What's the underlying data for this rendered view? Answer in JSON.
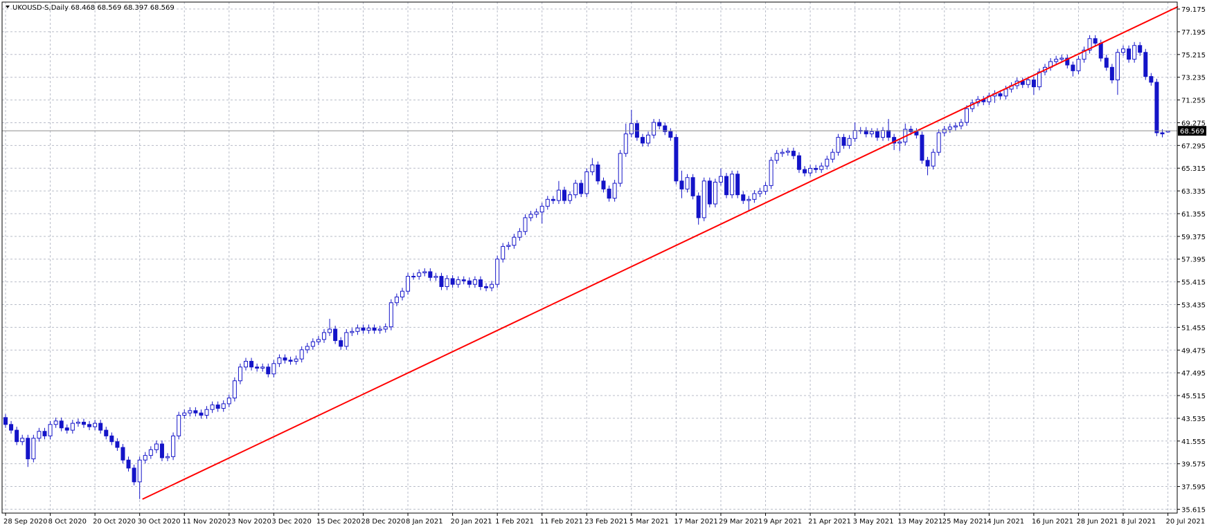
{
  "chart_data": {
    "type": "candlestick",
    "title": "UKOUSD-S,Daily",
    "x": [
      "28 Sep 2020",
      null,
      null,
      null,
      null,
      null,
      null,
      null,
      "8 Oct 2020",
      null,
      null,
      null,
      null,
      null,
      null,
      null,
      "20 Oct 2020",
      null,
      null,
      null,
      null,
      null,
      null,
      null,
      "30 Oct 2020",
      null,
      null,
      null,
      null,
      null,
      null,
      null,
      "11 Nov 2020",
      null,
      null,
      null,
      null,
      null,
      null,
      null,
      "23 Nov 2020",
      null,
      null,
      null,
      null,
      null,
      null,
      null,
      "3 Dec 2020",
      null,
      null,
      null,
      null,
      null,
      null,
      null,
      "15 Dec 2020",
      null,
      null,
      null,
      null,
      null,
      null,
      null,
      "28 Dec 2020",
      null,
      null,
      null,
      null,
      null,
      null,
      null,
      "8 Jan 2021",
      null,
      null,
      null,
      null,
      null,
      null,
      null,
      "20 Jan 2021",
      null,
      null,
      null,
      null,
      null,
      null,
      null,
      "1 Feb 2021",
      null,
      null,
      null,
      null,
      null,
      null,
      null,
      "11 Feb 2021",
      null,
      null,
      null,
      null,
      null,
      null,
      null,
      "23 Feb 2021",
      null,
      null,
      null,
      null,
      null,
      null,
      null,
      "5 Mar 2021",
      null,
      null,
      null,
      null,
      null,
      null,
      null,
      "17 Mar 2021",
      null,
      null,
      null,
      null,
      null,
      null,
      null,
      "29 Mar 2021",
      null,
      null,
      null,
      null,
      null,
      null,
      null,
      "9 Apr 2021",
      null,
      null,
      null,
      null,
      null,
      null,
      null,
      "21 Apr 2021",
      null,
      null,
      null,
      null,
      null,
      null,
      null,
      "3 May 2021",
      null,
      null,
      null,
      null,
      null,
      null,
      null,
      "13 May 2021",
      null,
      null,
      null,
      null,
      null,
      null,
      null,
      "25 May 2021",
      null,
      null,
      null,
      null,
      null,
      null,
      null,
      "4 Jun 2021",
      null,
      null,
      null,
      null,
      null,
      null,
      null,
      "16 Jun 2021",
      null,
      null,
      null,
      null,
      null,
      null,
      null,
      "28 Jun 2021",
      null,
      null,
      null,
      null,
      null,
      null,
      null,
      "8 Jul 2021",
      null,
      null,
      null,
      null,
      null,
      null,
      null,
      "20 Jul 2021"
    ],
    "open": [
      43.6,
      43.0,
      42.5,
      41.5,
      41.8,
      40.0,
      41.8,
      42.4,
      42.0,
      43.0,
      43.3,
      42.7,
      42.5,
      43.1,
      43.2,
      43.0,
      42.8,
      43.1,
      42.5,
      42.0,
      41.5,
      41.0,
      39.9,
      39.2,
      38.0,
      39.9,
      40.3,
      40.8,
      41.3,
      40.1,
      40.2,
      42.0,
      43.8,
      44.0,
      44.2,
      44.0,
      43.8,
      44.3,
      44.7,
      44.4,
      44.8,
      45.3,
      46.8,
      48.0,
      48.5,
      48.0,
      47.9,
      48.0,
      47.4,
      48.3,
      48.8,
      48.6,
      48.5,
      48.7,
      49.5,
      49.8,
      50.2,
      50.4,
      51.0,
      51.3,
      50.3,
      49.8,
      51.0,
      51.1,
      51.4,
      51.2,
      51.4,
      51.2,
      51.3,
      51.5,
      53.6,
      54.1,
      54.6,
      55.9,
      55.9,
      56.2,
      56.3,
      55.8,
      55.9,
      55.0,
      55.7,
      55.2,
      55.6,
      55.5,
      55.2,
      55.6,
      55.0,
      54.9,
      55.2,
      57.4,
      58.5,
      58.6,
      59.3,
      59.8,
      61.0,
      61.3,
      61.5,
      62.0,
      62.6,
      62.5,
      63.4,
      62.5,
      63.0,
      64.0,
      63.1,
      65.0,
      65.6,
      64.2,
      63.5,
      62.7,
      64.0,
      66.6,
      68.3,
      69.2,
      68.0,
      67.5,
      68.2,
      69.3,
      69.0,
      68.5,
      68.0,
      64.2,
      63.5,
      64.5,
      62.9,
      61.0,
      64.2,
      62.2,
      64.1,
      64.6,
      63.0,
      64.8,
      63.0,
      62.5,
      62.6,
      63.1,
      63.3,
      63.8,
      66.0,
      66.6,
      66.7,
      66.8,
      66.4,
      65.2,
      64.9,
      65.3,
      65.2,
      65.5,
      66.1,
      66.7,
      68.0,
      67.3,
      67.9,
      68.6,
      68.6,
      68.3,
      68.5,
      68.0,
      68.6,
      68.0,
      67.5,
      67.6,
      68.7,
      68.5,
      68.2,
      66.0,
      65.5,
      66.7,
      68.4,
      68.7,
      68.9,
      69.0,
      69.3,
      70.5,
      71.0,
      71.3,
      71.1,
      71.6,
      71.8,
      71.6,
      72.2,
      72.5,
      72.9,
      72.6,
      73.0,
      72.4,
      73.7,
      74.1,
      74.6,
      74.8,
      74.9,
      74.3,
      73.8,
      74.8,
      75.6,
      76.6,
      76.2,
      74.9,
      74.1,
      73.0,
      75.4,
      75.7,
      74.8,
      76.0,
      75.4,
      73.3,
      72.8,
      68.4,
      68.468
    ],
    "high": [
      43.9,
      43.3,
      42.8,
      42.1,
      42.1,
      42.1,
      42.7,
      42.7,
      43.3,
      43.6,
      43.6,
      43.0,
      43.4,
      43.5,
      43.5,
      43.3,
      43.4,
      43.4,
      42.8,
      42.3,
      41.8,
      41.3,
      40.2,
      39.5,
      40.2,
      40.6,
      41.1,
      41.6,
      41.6,
      40.5,
      42.3,
      44.1,
      44.3,
      44.5,
      44.5,
      44.3,
      44.6,
      45.0,
      45.0,
      45.1,
      45.6,
      47.1,
      48.3,
      48.8,
      48.8,
      48.3,
      48.3,
      48.3,
      48.6,
      49.1,
      49.1,
      48.9,
      49.0,
      49.8,
      50.1,
      50.5,
      50.7,
      51.3,
      52.2,
      51.6,
      50.6,
      51.3,
      51.4,
      51.7,
      51.7,
      51.7,
      51.7,
      51.6,
      51.8,
      53.9,
      54.4,
      54.9,
      56.2,
      56.2,
      56.5,
      56.6,
      56.6,
      56.2,
      56.2,
      56.0,
      56.0,
      55.9,
      55.9,
      55.8,
      55.9,
      55.9,
      55.3,
      55.5,
      57.7,
      58.8,
      58.9,
      59.6,
      60.1,
      61.3,
      61.6,
      61.8,
      62.3,
      62.9,
      62.9,
      64.2,
      63.7,
      63.3,
      64.3,
      64.3,
      65.3,
      66.2,
      65.9,
      64.5,
      63.8,
      64.3,
      66.9,
      69.2,
      70.4,
      69.5,
      68.3,
      68.5,
      69.6,
      69.6,
      69.3,
      68.8,
      68.3,
      65.1,
      64.8,
      64.8,
      63.2,
      64.5,
      64.5,
      64.4,
      65.3,
      64.9,
      65.1,
      65.1,
      63.3,
      62.9,
      63.4,
      63.6,
      64.1,
      66.3,
      66.9,
      67.0,
      67.1,
      67.1,
      66.7,
      65.5,
      65.6,
      65.6,
      65.8,
      66.4,
      67.0,
      68.3,
      68.3,
      68.2,
      69.3,
      68.9,
      68.9,
      68.8,
      68.8,
      68.9,
      69.6,
      68.3,
      67.9,
      69.2,
      69.0,
      68.8,
      68.5,
      66.3,
      67.0,
      68.7,
      69.0,
      69.2,
      69.3,
      69.6,
      70.8,
      71.3,
      71.6,
      71.6,
      71.9,
      72.1,
      72.1,
      72.5,
      72.8,
      73.2,
      73.2,
      73.3,
      73.3,
      74.0,
      74.4,
      74.9,
      75.1,
      75.2,
      75.2,
      74.6,
      75.1,
      75.9,
      76.9,
      76.9,
      76.5,
      75.2,
      74.4,
      75.7,
      76.0,
      76.0,
      76.3,
      76.3,
      75.7,
      73.6,
      73.1,
      68.7,
      68.569
    ],
    "low": [
      42.7,
      42.2,
      41.2,
      41.2,
      39.3,
      39.7,
      41.5,
      41.7,
      41.7,
      42.7,
      42.4,
      42.2,
      42.2,
      42.8,
      42.7,
      42.5,
      42.5,
      42.2,
      41.7,
      41.2,
      40.7,
      39.6,
      38.9,
      37.7,
      36.5,
      39.6,
      40.0,
      40.5,
      39.8,
      39.8,
      39.9,
      41.7,
      43.5,
      43.7,
      43.7,
      43.5,
      43.5,
      44.0,
      44.1,
      44.1,
      44.5,
      45.0,
      46.5,
      47.7,
      47.7,
      47.6,
      47.6,
      47.1,
      47.1,
      48.0,
      48.3,
      48.2,
      48.2,
      48.4,
      49.2,
      49.5,
      49.9,
      50.1,
      50.7,
      50.0,
      49.5,
      49.5,
      50.7,
      50.8,
      50.9,
      50.9,
      50.9,
      50.9,
      51.0,
      51.2,
      53.3,
      53.8,
      54.3,
      55.6,
      55.6,
      55.9,
      55.5,
      55.5,
      54.7,
      54.7,
      54.9,
      54.9,
      55.2,
      54.9,
      54.9,
      54.7,
      54.6,
      54.6,
      54.9,
      57.1,
      58.2,
      58.3,
      59.0,
      59.5,
      60.7,
      61.0,
      60.5,
      61.7,
      62.2,
      62.2,
      62.2,
      62.2,
      62.7,
      62.8,
      62.8,
      64.7,
      63.9,
      63.2,
      62.4,
      62.4,
      63.7,
      66.3,
      68.0,
      67.7,
      67.2,
      67.2,
      67.9,
      68.7,
      68.2,
      67.7,
      63.9,
      62.7,
      63.2,
      62.6,
      60.4,
      60.7,
      61.9,
      61.9,
      63.8,
      62.7,
      62.7,
      62.7,
      62.2,
      61.6,
      62.3,
      62.8,
      63.0,
      63.5,
      65.7,
      66.3,
      66.4,
      66.1,
      64.9,
      64.6,
      64.6,
      64.9,
      64.9,
      65.2,
      65.8,
      66.4,
      67.0,
      67.0,
      67.6,
      68.3,
      68.0,
      68.0,
      67.7,
      67.7,
      67.7,
      66.9,
      66.8,
      67.3,
      68.2,
      67.9,
      65.7,
      64.7,
      65.2,
      66.4,
      68.1,
      68.4,
      68.6,
      68.7,
      69.0,
      70.2,
      70.7,
      70.8,
      70.8,
      71.0,
      71.3,
      71.3,
      71.9,
      72.2,
      72.3,
      72.3,
      71.7,
      72.1,
      73.4,
      73.8,
      74.3,
      74.5,
      74.0,
      73.3,
      73.5,
      74.5,
      75.3,
      75.9,
      74.6,
      73.8,
      72.7,
      71.7,
      75.1,
      74.5,
      74.5,
      75.1,
      73.0,
      72.5,
      68.1,
      68.0,
      68.397
    ],
    "close": [
      43.0,
      42.5,
      41.5,
      41.8,
      40.0,
      41.8,
      42.4,
      42.0,
      43.0,
      43.3,
      42.7,
      42.5,
      43.1,
      43.2,
      43.0,
      42.8,
      43.1,
      42.5,
      42.0,
      41.5,
      41.0,
      39.9,
      39.2,
      38.0,
      39.9,
      40.3,
      40.8,
      41.3,
      40.1,
      40.2,
      42.0,
      43.8,
      44.0,
      44.2,
      44.0,
      43.8,
      44.3,
      44.7,
      44.4,
      44.8,
      45.3,
      46.8,
      48.0,
      48.5,
      48.0,
      47.9,
      48.0,
      47.4,
      48.3,
      48.8,
      48.6,
      48.5,
      48.7,
      49.5,
      49.8,
      50.2,
      50.4,
      51.0,
      51.3,
      50.3,
      49.8,
      51.0,
      51.1,
      51.4,
      51.2,
      51.4,
      51.2,
      51.3,
      51.5,
      53.6,
      54.1,
      54.6,
      55.9,
      55.9,
      56.2,
      56.3,
      55.8,
      55.9,
      55.0,
      55.7,
      55.2,
      55.6,
      55.5,
      55.2,
      55.6,
      55.0,
      54.9,
      55.2,
      57.4,
      58.5,
      58.6,
      59.3,
      59.8,
      61.0,
      61.3,
      61.5,
      62.0,
      62.6,
      62.5,
      63.4,
      62.5,
      63.0,
      64.0,
      63.1,
      65.0,
      65.6,
      64.2,
      63.5,
      62.7,
      64.0,
      66.6,
      68.3,
      69.2,
      68.0,
      67.5,
      68.2,
      69.3,
      69.0,
      68.5,
      68.0,
      64.2,
      63.5,
      64.5,
      62.9,
      61.0,
      64.2,
      62.2,
      64.1,
      64.6,
      63.0,
      64.8,
      63.0,
      62.5,
      62.6,
      63.1,
      63.3,
      63.8,
      66.0,
      66.6,
      66.7,
      66.8,
      66.4,
      65.2,
      64.9,
      65.3,
      65.2,
      65.5,
      66.1,
      66.7,
      68.0,
      67.3,
      67.9,
      68.6,
      68.6,
      68.3,
      68.5,
      68.0,
      68.6,
      68.0,
      67.5,
      67.6,
      68.7,
      68.5,
      68.2,
      66.0,
      65.5,
      66.7,
      68.4,
      68.7,
      68.9,
      69.0,
      69.3,
      70.5,
      71.0,
      71.3,
      71.1,
      71.6,
      71.8,
      71.6,
      72.2,
      72.5,
      72.9,
      72.6,
      73.0,
      72.4,
      73.7,
      74.1,
      74.6,
      74.8,
      74.9,
      74.3,
      73.8,
      74.8,
      75.6,
      76.6,
      76.2,
      74.9,
      74.1,
      73.0,
      75.4,
      75.7,
      74.8,
      76.0,
      75.4,
      73.3,
      72.8,
      68.4,
      68.3,
      68.569
    ],
    "color": "#1414c8",
    "bull_fill": "#ffffff",
    "bear_fill": "#1414c8",
    "ylim": [
      35.28,
      79.78
    ],
    "yticks": [
      79.175,
      77.195,
      75.215,
      73.235,
      71.255,
      69.275,
      67.295,
      65.315,
      63.335,
      61.355,
      59.375,
      57.395,
      55.415,
      53.435,
      51.455,
      49.475,
      47.495,
      45.515,
      43.535,
      41.555,
      39.575,
      37.595,
      35.615
    ],
    "grid": true,
    "trendline": {
      "x": [
        24.5,
        209.8
      ],
      "y": [
        36.49,
        79.38
      ],
      "color": "#ff0000"
    }
  }
}
